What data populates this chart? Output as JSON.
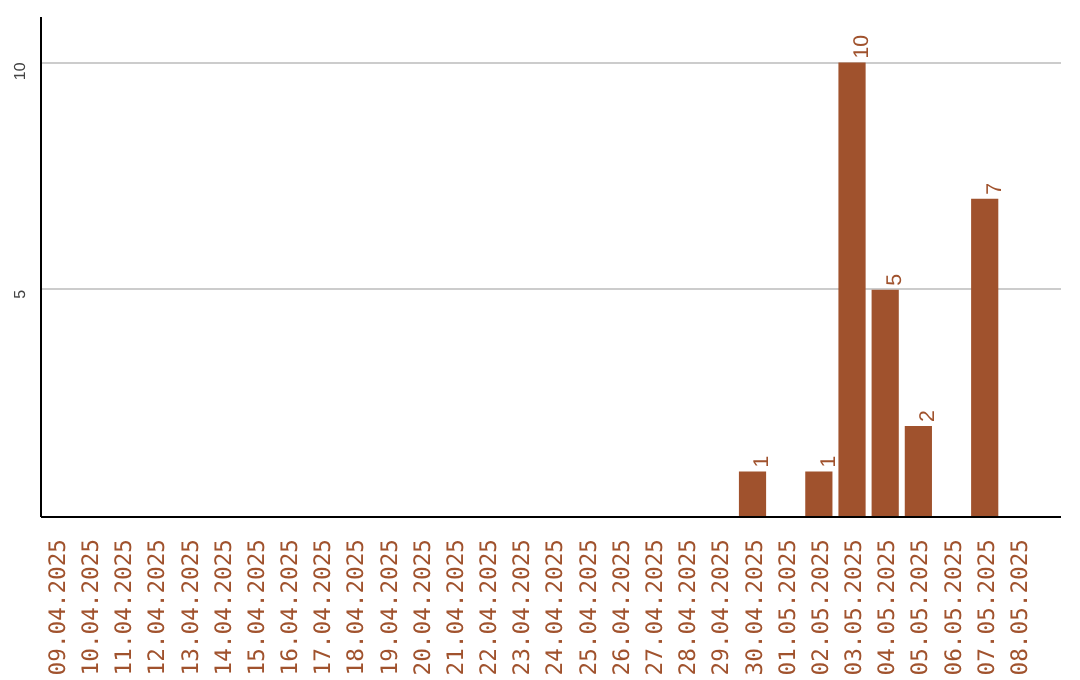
{
  "chart_data": {
    "type": "bar",
    "categories": [
      "09.04.2025",
      "10.04.2025",
      "11.04.2025",
      "12.04.2025",
      "13.04.2025",
      "14.04.2025",
      "15.04.2025",
      "16.04.2025",
      "17.04.2025",
      "18.04.2025",
      "19.04.2025",
      "20.04.2025",
      "21.04.2025",
      "22.04.2025",
      "23.04.2025",
      "24.04.2025",
      "25.04.2025",
      "26.04.2025",
      "27.04.2025",
      "28.04.2025",
      "29.04.2025",
      "30.04.2025",
      "01.05.2025",
      "02.05.2025",
      "03.05.2025",
      "04.05.2025",
      "05.05.2025",
      "06.05.2025",
      "07.05.2025",
      "08.05.2025"
    ],
    "values": [
      0,
      0,
      0,
      0,
      0,
      0,
      0,
      0,
      0,
      0,
      0,
      0,
      0,
      0,
      0,
      0,
      0,
      0,
      0,
      0,
      0,
      1,
      0,
      1,
      10,
      5,
      2,
      0,
      7,
      0
    ],
    "value_labels": [
      null,
      null,
      null,
      null,
      null,
      null,
      null,
      null,
      null,
      null,
      null,
      null,
      null,
      null,
      null,
      null,
      null,
      null,
      null,
      null,
      null,
      "1",
      null,
      "1",
      "10",
      "5",
      "2",
      null,
      "7",
      null
    ],
    "color": "#a0522d",
    "ylim": [
      0,
      11
    ],
    "yticks": [
      5,
      10
    ],
    "grid": "y"
  }
}
